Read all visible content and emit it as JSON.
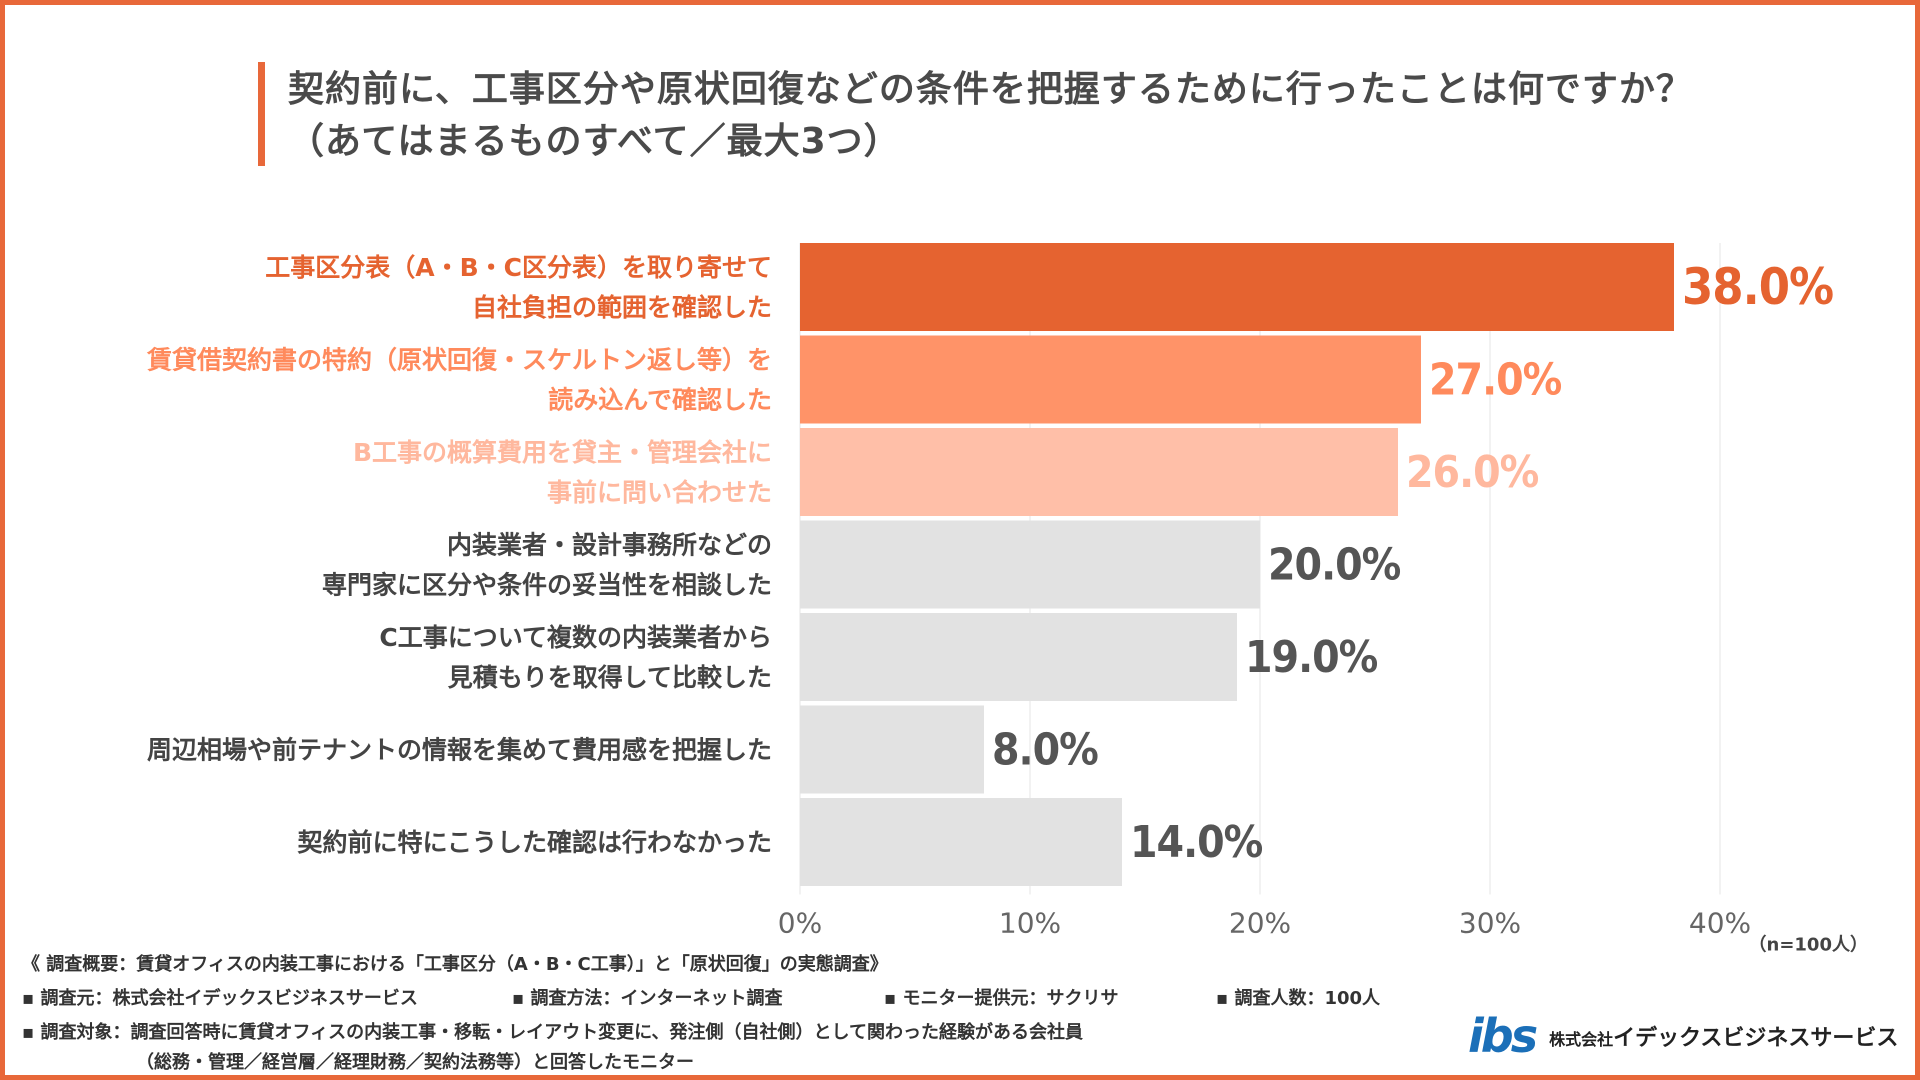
{
  "title": {
    "line1": "契約前に、工事区分や原状回復などの条件を把握するために行ったことは何ですか？",
    "line2": "（あてはまるものすべて／最大3つ）"
  },
  "chart_data": {
    "type": "bar",
    "orientation": "horizontal",
    "categories": [
      [
        "工事区分表（A・B・C区分表）を取り寄せて",
        "自社負担の範囲を確認した"
      ],
      [
        "賃貸借契約書の特約（原状回復・スケルトン返し等）を",
        "読み込んで確認した"
      ],
      [
        "B工事の概算費用を貸主・管理会社に",
        "事前に問い合わせた"
      ],
      [
        "内装業者・設計事務所などの",
        "専門家に区分や条件の妥当性を相談した"
      ],
      [
        "C工事について複数の内装業者から",
        "見積もりを取得して比較した"
      ],
      [
        "周辺相場や前テナントの情報を集めて費用感を把握した"
      ],
      [
        "契約前に特にこうした確認は行わなかった"
      ]
    ],
    "values": [
      38.0,
      27.0,
      26.0,
      20.0,
      19.0,
      8.0,
      14.0
    ],
    "value_labels": [
      "38.0%",
      "27.0%",
      "26.0%",
      "20.0%",
      "19.0%",
      "8.0%",
      "14.0%"
    ],
    "bar_colors": [
      "#e56330",
      "#ff9368",
      "#ffbfa8",
      "#e2e2e2",
      "#e2e2e2",
      "#e2e2e2",
      "#e2e2e2"
    ],
    "label_colors": [
      "#e56330",
      "#ff8a5c",
      "#ffb89e",
      "#444444",
      "#444444",
      "#444444",
      "#444444"
    ],
    "value_colors": [
      "#e56330",
      "#ff8a5c",
      "#ffb89e",
      "#555555",
      "#555555",
      "#555555",
      "#555555"
    ],
    "xlim": [
      0,
      40
    ],
    "xticks": [
      "0%",
      "10%",
      "20%",
      "30%",
      "40%"
    ],
    "grid": true,
    "note": "（n=100人）"
  },
  "footer": {
    "summary": "《 調査概要：賃貸オフィスの内装工事における「工事区分（A・B・C工事）」と「原状回復」の実態調査》",
    "source": "▪ 調査元：株式会社イデックスビジネスサービス",
    "method": "▪ 調査方法：インターネット調査",
    "monitor": "▪ モニター提供元：サクリサ",
    "count": "▪ 調査人数：100人",
    "target1": "▪ 調査対象：調査回答時に賃貸オフィスの内装工事・移転・レイアウト変更に、発注側（自社側）として関わった経験がある会社員",
    "target2": "（総務・管理／経営層／経理財務／契約法務等）と回答したモニター"
  },
  "logo": {
    "mark": "ibs",
    "prefix": "株式会社",
    "name": "イデックスビジネスサービス"
  }
}
